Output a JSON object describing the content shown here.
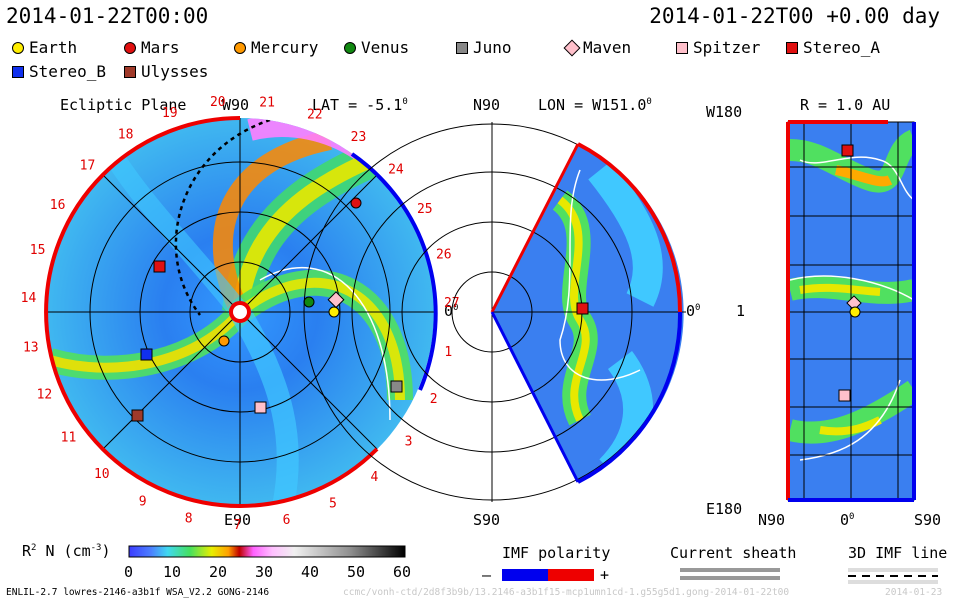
{
  "header": {
    "timestamp_left": "2014-01-22T00:00",
    "timestamp_right": "2014-01-22T00 +0.00 day"
  },
  "legend": [
    {
      "label": "Earth",
      "color": "#ffee00",
      "shape": "circle"
    },
    {
      "label": "Mars",
      "color": "#e01010",
      "shape": "circle"
    },
    {
      "label": "Mercury",
      "color": "#ff9900",
      "shape": "circle"
    },
    {
      "label": "Venus",
      "color": "#118811",
      "shape": "circle"
    },
    {
      "label": "Juno",
      "color": "#888888",
      "shape": "square"
    },
    {
      "label": "Maven",
      "color": "#ffc0cb",
      "shape": "diamond"
    },
    {
      "label": "Spitzer",
      "color": "#ffc0cb",
      "shape": "square"
    },
    {
      "label": "Stereo_A",
      "color": "#e01010",
      "shape": "square"
    },
    {
      "label": "Stereo_B",
      "color": "#1030ee",
      "shape": "square"
    },
    {
      "label": "Ulysses",
      "color": "#a03a2a",
      "shape": "square"
    }
  ],
  "panel_ecliptic": {
    "title": "Ecliptic Plane",
    "lat_label": "LAT = -5.1",
    "degree": "0",
    "top_label": "W90",
    "bottom_label": "E90",
    "right_label": "0",
    "right_label_sup": "0",
    "sectors": [
      "20",
      "21",
      "22",
      "23",
      "24",
      "25",
      "26",
      "27",
      "1",
      "2",
      "3",
      "4",
      "5",
      "6",
      "7",
      "8",
      "9",
      "10",
      "11",
      "12",
      "13",
      "14",
      "15",
      "16",
      "17",
      "18",
      "19"
    ]
  },
  "panel_meridional": {
    "lon_label": "LON = W151.0",
    "degree": "0",
    "top_label": "N90",
    "bottom_label": "S90",
    "right_label": "0",
    "right_label_sup": "0"
  },
  "panel_map": {
    "r_label": "R = 1.0 AU",
    "left_top": "W180",
    "left_mid": "1",
    "left_bottom": "E180",
    "bottom_left": "N90",
    "bottom_mid": "0",
    "bottom_mid_sup": "0",
    "bottom_right": "S90"
  },
  "colorbar": {
    "label_main": "R",
    "label_sup": "2",
    "label_rest": " N (cm",
    "label_exp": "-3",
    "label_close": ")",
    "ticks": [
      "0",
      "10",
      "20",
      "30",
      "40",
      "50",
      "60"
    ]
  },
  "imf_polarity": {
    "title": "IMF polarity",
    "minus": "–",
    "plus": "+",
    "neg_color": "#0000ee",
    "pos_color": "#ee0000"
  },
  "current_sheath": {
    "title": "Current sheath"
  },
  "imf_line": {
    "title": "3D IMF line"
  },
  "footer": {
    "model": "ENLIL-2.7 lowres-2146-a3b1f WSA_V2.2 GONG-2146",
    "run": "ccmc/vonh-ctd/2d8f3b9b/13.2146-a3b1f15-mcp1umn1cd-1.g55g5d1.gong-2014-01-22t00",
    "date": "2014-01-23"
  }
}
